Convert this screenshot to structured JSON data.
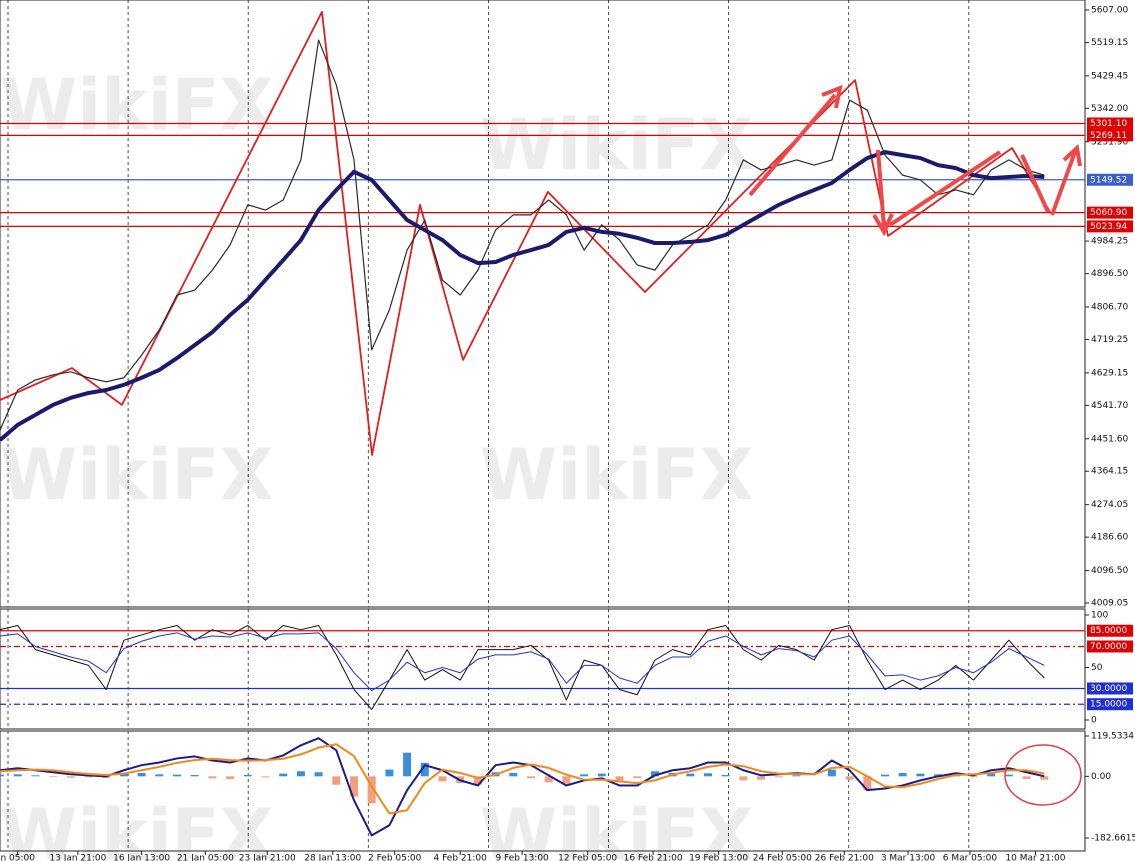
{
  "chart_data": [
    {
      "type": "line",
      "watermark": "WikiFX",
      "xlim": [
        0,
        61.3
      ],
      "xticks": [
        {
          "value": 1.0,
          "label": "n 05:00"
        },
        {
          "value": 4.4,
          "label": "13 Jan 21:00"
        },
        {
          "value": 8.0,
          "label": "16 Jan 13:00"
        },
        {
          "value": 11.6,
          "label": "21 Jan 05:00"
        },
        {
          "value": 15.1,
          "label": "23 Jan 21:00"
        },
        {
          "value": 18.8,
          "label": "28 Jan 13:00"
        },
        {
          "value": 22.3,
          "label": "2 Feb 05:00"
        },
        {
          "value": 26.0,
          "label": "4 Feb 21:00"
        },
        {
          "value": 29.5,
          "label": "9 Feb 13:00"
        },
        {
          "value": 33.2,
          "label": "12 Feb 05:00"
        },
        {
          "value": 36.9,
          "label": "16 Feb 21:00"
        },
        {
          "value": 40.6,
          "label": "19 Feb 13:00"
        },
        {
          "value": 44.2,
          "label": "24 Feb 05:00"
        },
        {
          "value": 47.7,
          "label": "26 Feb 21:00"
        },
        {
          "value": 51.3,
          "label": "3 Mar 13:00"
        },
        {
          "value": 54.8,
          "label": "6 Mar 05:00"
        },
        {
          "value": 58.5,
          "label": "10 Mar 21:00"
        }
      ],
      "ylim": [
        3998.3,
        5633.9
      ],
      "yticks": [
        {
          "value": 5607,
          "label": "5607.00"
        },
        {
          "value": 5519.15,
          "label": "5519.15"
        },
        {
          "value": 5429.45,
          "label": "5429.45"
        },
        {
          "value": 5342,
          "label": "5342.00"
        },
        {
          "value": 5251.9,
          "label": "5251.90"
        },
        {
          "value": 4984.25,
          "label": "4984.25"
        },
        {
          "value": 4896.5,
          "label": "4896.50"
        },
        {
          "value": 4806.7,
          "label": "4806.70"
        },
        {
          "value": 4719.25,
          "label": "4719.25"
        },
        {
          "value": 4629.15,
          "label": "4629.15"
        },
        {
          "value": 4541.7,
          "label": "4541.70"
        },
        {
          "value": 4451.6,
          "label": "4451.60"
        },
        {
          "value": 4364.15,
          "label": "4364.15"
        },
        {
          "value": 4274.05,
          "label": "4274.05"
        },
        {
          "value": 4186.6,
          "label": "4186.60"
        },
        {
          "value": 4096.5,
          "label": "4096.50"
        },
        {
          "value": 4009.05,
          "label": "4009.05"
        }
      ],
      "levels": [
        {
          "value": 5301.1,
          "label": "5301.10",
          "color": "#e00000"
        },
        {
          "value": 5269.11,
          "label": "5269.11",
          "color": "#e00000"
        },
        {
          "value": 5149.52,
          "label": "5149.52",
          "color": "#3a5fcd"
        },
        {
          "value": 5060.9,
          "label": "5060.90",
          "color": "#e00000"
        },
        {
          "value": 5023.94,
          "label": "5023.94",
          "color": "#e00000"
        }
      ],
      "series": [
        {
          "color": "#2b2b2b",
          "line_width": 1.2,
          "values": [
            4475,
            4583,
            4610,
            4624,
            4632,
            4616,
            4605,
            4616,
            4677,
            4745,
            4839,
            4852,
            4906,
            4974,
            5082,
            5068,
            5095,
            5203,
            5526,
            5405,
            5203,
            4691,
            4799,
            4960,
            5041,
            4879,
            4839,
            4906,
            5014,
            5055,
            5055,
            5095,
            5055,
            4960,
            5028,
            4987,
            4920,
            4906,
            4974,
            5001,
            5028,
            5095,
            5203,
            5176,
            5189,
            5203,
            5189,
            5203,
            5364,
            5337,
            5216,
            5162,
            5149,
            5109,
            5122,
            5109,
            5176,
            5203,
            5176,
            5162
          ]
        },
        {
          "color": "#1b1b6b",
          "line_width": 4,
          "values": [
            4448,
            4489,
            4516,
            4543,
            4562,
            4575,
            4583,
            4597,
            4616,
            4637,
            4669,
            4704,
            4739,
            4785,
            4826,
            4880,
            4933,
            4987,
            5068,
            5122,
            5171,
            5149,
            5095,
            5041,
            5014,
            4987,
            4947,
            4925,
            4928,
            4947,
            4960,
            4974,
            5009,
            5020,
            5009,
            5004,
            4993,
            4979,
            4979,
            4982,
            4987,
            5001,
            5028,
            5055,
            5082,
            5103,
            5122,
            5141,
            5176,
            5208,
            5224,
            5216,
            5208,
            5189,
            5181,
            5162,
            5154,
            5157,
            5160,
            5157
          ]
        }
      ],
      "zigzag": {
        "color": "#e02020",
        "x": [
          0,
          4.07,
          6.89,
          18.19,
          21.02,
          23.73,
          26.16,
          30.96,
          36.44,
          48.31,
          50.17,
          57.18,
          59.32
        ],
        "values": [
          4556,
          4642,
          4543,
          5602,
          4408,
          5082,
          4664,
          5117,
          4847,
          5418,
          4998,
          5235,
          5063
        ]
      }
    },
    {
      "type": "line",
      "ylim": [
        -8.6,
        105.7
      ],
      "yticks": [
        100,
        50,
        0
      ],
      "levels": [
        {
          "value": 85,
          "label": "85.0000",
          "color": "#e00000"
        },
        {
          "value": 70,
          "label": "70.0000",
          "color": "#e00000"
        },
        {
          "value": 30,
          "label": "30.0000",
          "color": "#1f2fd0"
        },
        {
          "value": 15,
          "label": "15.0000",
          "color": "#1f2fd0"
        }
      ],
      "series": [
        {
          "color": "#111111",
          "line_width": 1,
          "values": [
            86,
            90,
            67,
            62,
            57,
            52,
            29,
            76,
            81,
            86,
            90,
            76,
            86,
            81,
            90,
            76,
            90,
            86,
            90,
            62,
            29,
            10,
            38,
            67,
            38,
            48,
            38,
            67,
            67,
            67,
            71,
            57,
            19,
            57,
            52,
            29,
            24,
            57,
            67,
            62,
            86,
            90,
            67,
            57,
            71,
            67,
            57,
            86,
            90,
            57,
            29,
            38,
            29,
            38,
            52,
            38,
            57,
            76,
            57,
            40
          ]
        },
        {
          "color": "#2233cc",
          "line_width": 1,
          "values": [
            80,
            82,
            70,
            65,
            60,
            56,
            45,
            68,
            75,
            80,
            83,
            77,
            80,
            79,
            83,
            78,
            82,
            82,
            83,
            68,
            45,
            28,
            38,
            55,
            45,
            50,
            45,
            58,
            62,
            62,
            65,
            58,
            35,
            52,
            52,
            40,
            35,
            52,
            60,
            60,
            75,
            80,
            70,
            62,
            68,
            66,
            60,
            76,
            80,
            62,
            42,
            43,
            38,
            42,
            50,
            45,
            55,
            68,
            60,
            52
          ]
        }
      ]
    },
    {
      "type": "macd",
      "ylim": [
        -221.2,
        134.3
      ],
      "yticks": [
        119.5334,
        {
          "value": 0,
          "label": "0.00"
        },
        -182.6615
      ],
      "histogram": {
        "up_color": "#3a8fd8",
        "down_color": "#f0a080",
        "values": [
          5,
          6,
          3,
          -2,
          -4,
          -3,
          -5,
          8,
          10,
          6,
          5,
          4,
          -6,
          -8,
          4,
          -3,
          8,
          15,
          12,
          -25,
          -60,
          -80,
          20,
          70,
          40,
          -15,
          -20,
          -25,
          12,
          10,
          -5,
          -18,
          -22,
          6,
          8,
          -12,
          -5,
          15,
          10,
          8,
          9,
          4,
          -12,
          -10,
          -3,
          3,
          0,
          20,
          -10,
          -40,
          5,
          10,
          8,
          6,
          6,
          -3,
          8,
          5,
          -8,
          -10
        ]
      },
      "series": [
        {
          "color": "#1b1b8b",
          "line_width": 2,
          "values": [
            18,
            24,
            18,
            12,
            6,
            3,
            0,
            18,
            33,
            41,
            53,
            59,
            47,
            41,
            53,
            47,
            62,
            92,
            113,
            77,
            -71,
            -175,
            -145,
            -41,
            33,
            18,
            -12,
            -27,
            33,
            41,
            33,
            3,
            -27,
            -12,
            -6,
            -27,
            -27,
            3,
            18,
            24,
            41,
            41,
            18,
            3,
            6,
            9,
            6,
            47,
            18,
            -41,
            -36,
            -27,
            -12,
            0,
            9,
            3,
            18,
            24,
            12,
            0
          ]
        },
        {
          "color": "#f08a1c",
          "line_width": 2,
          "values": [
            15,
            18,
            20,
            18,
            12,
            7,
            4,
            8,
            18,
            28,
            40,
            48,
            52,
            48,
            46,
            48,
            52,
            65,
            85,
            95,
            60,
            -30,
            -110,
            -100,
            -20,
            20,
            10,
            -5,
            5,
            25,
            35,
            25,
            5,
            -10,
            -10,
            -15,
            -20,
            -12,
            5,
            15,
            28,
            35,
            30,
            15,
            8,
            6,
            6,
            25,
            28,
            0,
            -30,
            -32,
            -22,
            -8,
            4,
            6,
            10,
            18,
            18,
            8
          ]
        }
      ]
    }
  ]
}
